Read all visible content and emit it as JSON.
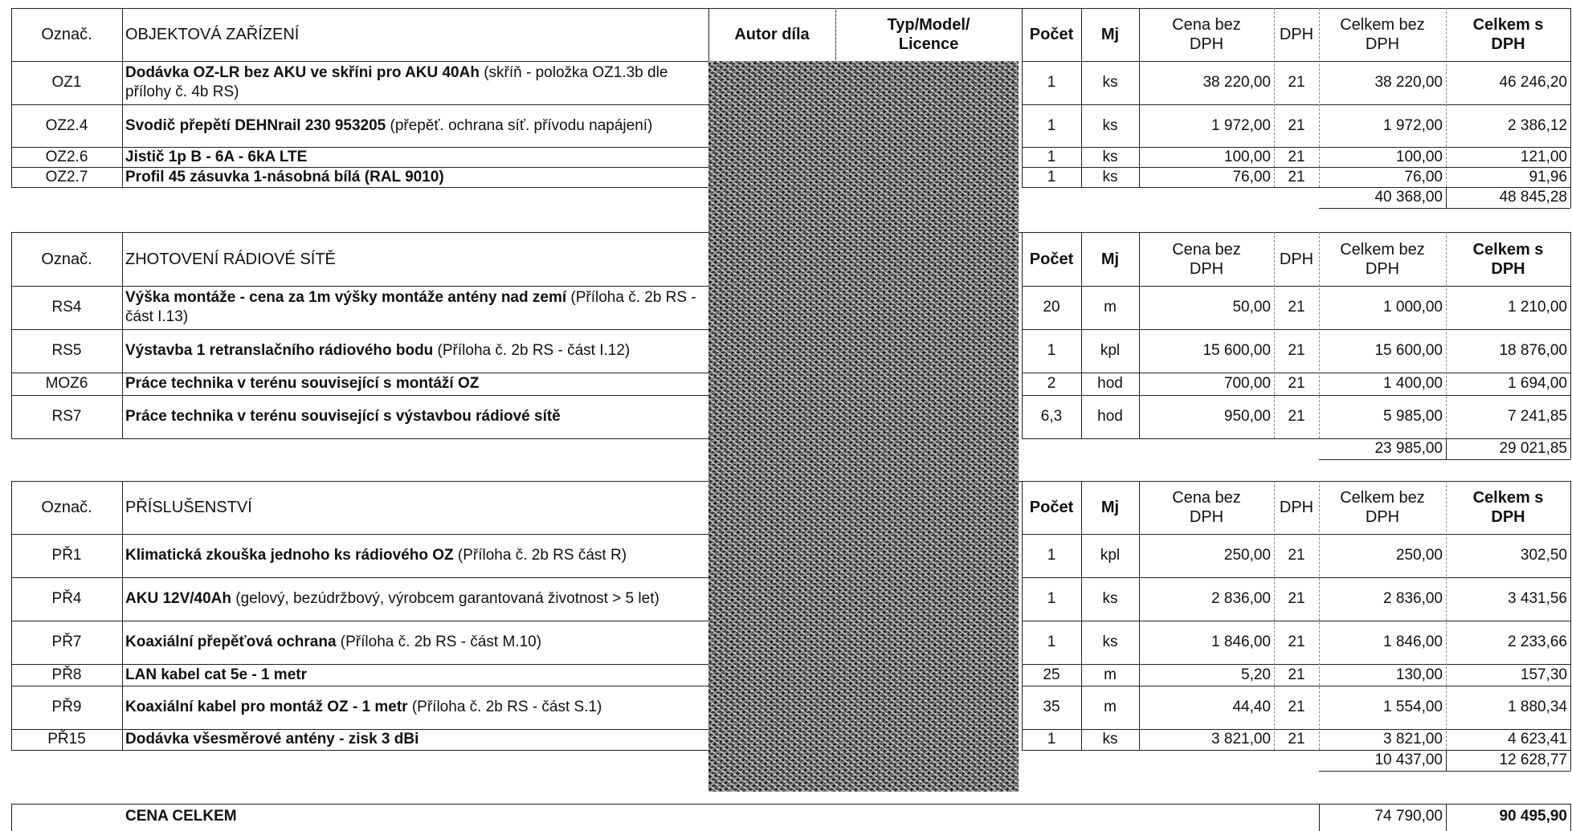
{
  "header": {
    "code": "Označ.",
    "title": "OBJEKTOVÁ ZAŘÍZENÍ",
    "author": "Autor díla",
    "type_line1": "Typ/Model/",
    "type_line2": "Licence",
    "count": "Počet",
    "unit": "Mj",
    "price_line1": "Cena bez",
    "price_line2": "DPH",
    "vat": "DPH",
    "total_line1": "Celkem bez",
    "total_line2": "DPH",
    "totalvat_line1": "Celkem s",
    "totalvat_line2": "DPH"
  },
  "sections": [
    {
      "title": "OBJEKTOVÁ ZAŘÍZENÍ",
      "rows": [
        {
          "code": "OZ1",
          "name": "Dodávka OZ-LR bez AKU ve skříni pro AKU 40Ah",
          "note": " (skříň - položka OZ1.3b dle přílohy č. 4b RS)",
          "count": "1",
          "unit": "ks",
          "price": "38 220,00",
          "vat": "21",
          "total": "38 220,00",
          "total_vat": "46 246,20"
        },
        {
          "code": "OZ2.4",
          "name": "Svodič přepětí DEHNrail 230 953205",
          "note": " (přepěť. ochrana síť. přívodu napájení)",
          "count": "1",
          "unit": "ks",
          "price": "1 972,00",
          "vat": "21",
          "total": "1 972,00",
          "total_vat": "2 386,12"
        },
        {
          "code": "OZ2.6",
          "name": "Jistič 1p B - 6A - 6kA LTE",
          "note": "",
          "count": "1",
          "unit": "ks",
          "price": "100,00",
          "vat": "21",
          "total": "100,00",
          "total_vat": "121,00"
        },
        {
          "code": "OZ2.7",
          "name": "Profil 45 zásuvka 1-násobná bílá (RAL 9010)",
          "note": "",
          "count": "1",
          "unit": "ks",
          "price": "76,00",
          "vat": "21",
          "total": "76,00",
          "total_vat": "91,96"
        }
      ],
      "subtotal": "40 368,00",
      "subtotal_vat": "48 845,28"
    },
    {
      "title": "ZHOTOVENÍ RÁDIOVÉ SÍTĚ",
      "rows": [
        {
          "code": "RS4",
          "name": "Výška montáže - cena za 1m výšky montáže antény nad zemí",
          "note": " (Příloha č. 2b RS - část I.13)",
          "count": "20",
          "unit": "m",
          "price": "50,00",
          "vat": "21",
          "total": "1 000,00",
          "total_vat": "1 210,00"
        },
        {
          "code": "RS5",
          "name": "Výstavba 1 retranslačního rádiového bodu",
          "note": " (Příloha č. 2b RS - část I.12)",
          "count": "1",
          "unit": "kpl",
          "price": "15 600,00",
          "vat": "21",
          "total": "15 600,00",
          "total_vat": "18 876,00"
        },
        {
          "code": "MOZ6",
          "name": "Práce technika v terénu související s montáží OZ",
          "note": "",
          "count": "2",
          "unit": "hod",
          "price": "700,00",
          "vat": "21",
          "total": "1 400,00",
          "total_vat": "1 694,00"
        },
        {
          "code": "RS7",
          "name": "Práce technika v terénu související s výstavbou rádiové sítě",
          "note": "",
          "count": "6,3",
          "unit": "hod",
          "price": "950,00",
          "vat": "21",
          "total": "5 985,00",
          "total_vat": "7 241,85"
        }
      ],
      "subtotal": "23 985,00",
      "subtotal_vat": "29 021,85"
    },
    {
      "title": "PŘÍSLUŠENSTVÍ",
      "rows": [
        {
          "code": "PŘ1",
          "name": "Klimatická zkouška jednoho ks rádiového OZ",
          "note": " (Příloha č. 2b RS část R)",
          "count": "1",
          "unit": "kpl",
          "price": "250,00",
          "vat": "21",
          "total": "250,00",
          "total_vat": "302,50"
        },
        {
          "code": "PŘ4",
          "name": "AKU 12V/40Ah",
          "note": " (gelový, bezúdržbový, výrobcem garantovaná životnost > 5 let)",
          "count": "1",
          "unit": "ks",
          "price": "2 836,00",
          "vat": "21",
          "total": "2 836,00",
          "total_vat": "3 431,56"
        },
        {
          "code": "PŘ7",
          "name": "Koaxiální přepěťová ochrana",
          "note": "  (Příloha č. 2b RS - část M.10)",
          "count": "1",
          "unit": "ks",
          "price": "1 846,00",
          "vat": "21",
          "total": "1 846,00",
          "total_vat": "2 233,66"
        },
        {
          "code": "PŘ8",
          "name": "LAN kabel cat 5e - 1 metr",
          "note": "",
          "count": "25",
          "unit": "m",
          "price": "5,20",
          "vat": "21",
          "total": "130,00",
          "total_vat": "157,30"
        },
        {
          "code": "PŘ9",
          "name": "Koaxiální kabel pro montáž OZ - 1 metr",
          "note": "  (Příloha č. 2b RS - část S.1)",
          "count": "35",
          "unit": "m",
          "price": "44,40",
          "vat": "21",
          "total": "1 554,00",
          "total_vat": "1 880,34"
        },
        {
          "code": "PŘ15",
          "name": "Dodávka všesměrové antény - zisk 3 dBi",
          "note": "",
          "count": "1",
          "unit": "ks",
          "price": "3 821,00",
          "vat": "21",
          "total": "3 821,00",
          "total_vat": "4 623,41"
        }
      ],
      "subtotal": "10 437,00",
      "subtotal_vat": "12 628,77"
    }
  ],
  "grand_total": {
    "label": "CENA CELKEM",
    "total": "74 790,00",
    "total_vat": "90 495,90"
  }
}
